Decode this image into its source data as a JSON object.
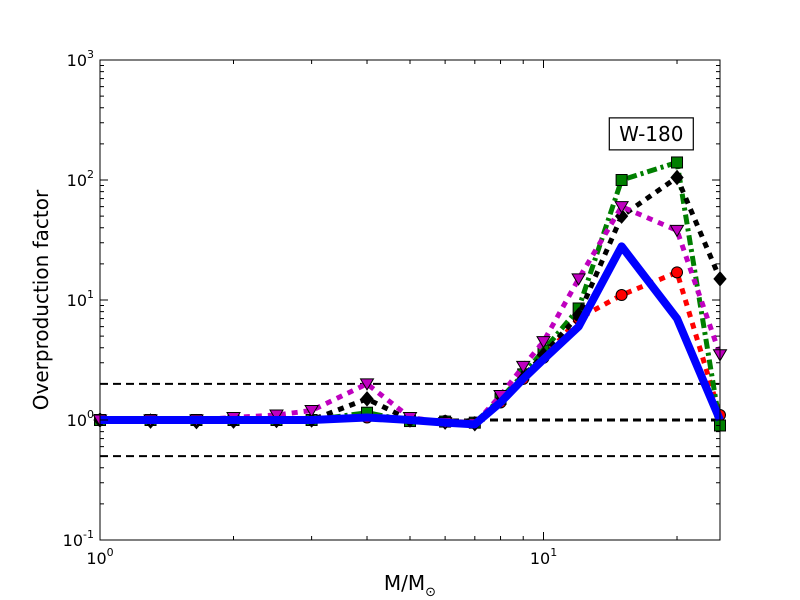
{
  "chart_data": {
    "type": "line",
    "title": "",
    "xlabel": "M/M",
    "xlabel_sub": "⊙",
    "ylabel": "Overproduction factor",
    "xscale": "log",
    "yscale": "log",
    "xlim": [
      1,
      25
    ],
    "ylim": [
      0.1,
      1000
    ],
    "x_ticks": [
      {
        "value": 1,
        "base": "10",
        "exp": "0"
      },
      {
        "value": 10,
        "base": "10",
        "exp": "1"
      }
    ],
    "y_ticks": [
      {
        "value": 0.1,
        "base": "10",
        "exp": "-1"
      },
      {
        "value": 1,
        "base": "10",
        "exp": "0"
      },
      {
        "value": 10,
        "base": "10",
        "exp": "1"
      },
      {
        "value": 100,
        "base": "10",
        "exp": "2"
      },
      {
        "value": 1000,
        "base": "10",
        "exp": "3"
      }
    ],
    "grid": false,
    "legend": "none",
    "annotation": {
      "text": "W-180",
      "x": 17.5,
      "y": 200
    },
    "reference_lines": [
      {
        "y": 2,
        "color": "#000000",
        "style": "dashed"
      },
      {
        "y": 1,
        "color": "#000000",
        "style": "dashed-bold"
      },
      {
        "y": 0.5,
        "color": "#000000",
        "style": "dashed"
      }
    ],
    "x": [
      1,
      1.3,
      1.65,
      2,
      2.5,
      3,
      4,
      5,
      6,
      7,
      8,
      9,
      10,
      12,
      15,
      20,
      25
    ],
    "series": [
      {
        "color": "#ff0000",
        "style": "dotted",
        "marker": "circle",
        "values": [
          1.0,
          1.0,
          1.0,
          1.0,
          1.0,
          1.0,
          1.05,
          1.0,
          0.98,
          0.95,
          1.4,
          2.2,
          3.3,
          7.0,
          11,
          17,
          1.1
        ]
      },
      {
        "color": "#007f00",
        "style": "dashdot",
        "marker": "square",
        "values": [
          1.0,
          1.0,
          1.0,
          1.0,
          1.0,
          1.0,
          1.15,
          0.98,
          0.97,
          0.95,
          1.5,
          2.4,
          3.8,
          8.5,
          100,
          140,
          0.9
        ]
      },
      {
        "color": "#000000",
        "style": "dotted",
        "marker": "diamond",
        "values": [
          1.0,
          0.98,
          0.97,
          0.98,
          0.99,
          1.0,
          1.5,
          1.0,
          0.96,
          0.93,
          1.45,
          2.3,
          3.5,
          7.5,
          50,
          105,
          15
        ]
      },
      {
        "color": "#bf00bf",
        "style": "dotted",
        "marker": "triangle-down",
        "values": [
          1.0,
          1.0,
          1.0,
          1.05,
          1.1,
          1.2,
          2.0,
          1.05,
          0.95,
          0.93,
          1.6,
          2.8,
          4.5,
          15,
          60,
          38,
          3.5
        ]
      },
      {
        "color": "#0000ff",
        "style": "solid",
        "marker": "none",
        "values": [
          1.0,
          1.0,
          1.0,
          1.0,
          1.0,
          1.0,
          1.05,
          1.0,
          0.95,
          0.92,
          1.4,
          2.2,
          3.2,
          6,
          28,
          7,
          1.0
        ]
      }
    ]
  }
}
